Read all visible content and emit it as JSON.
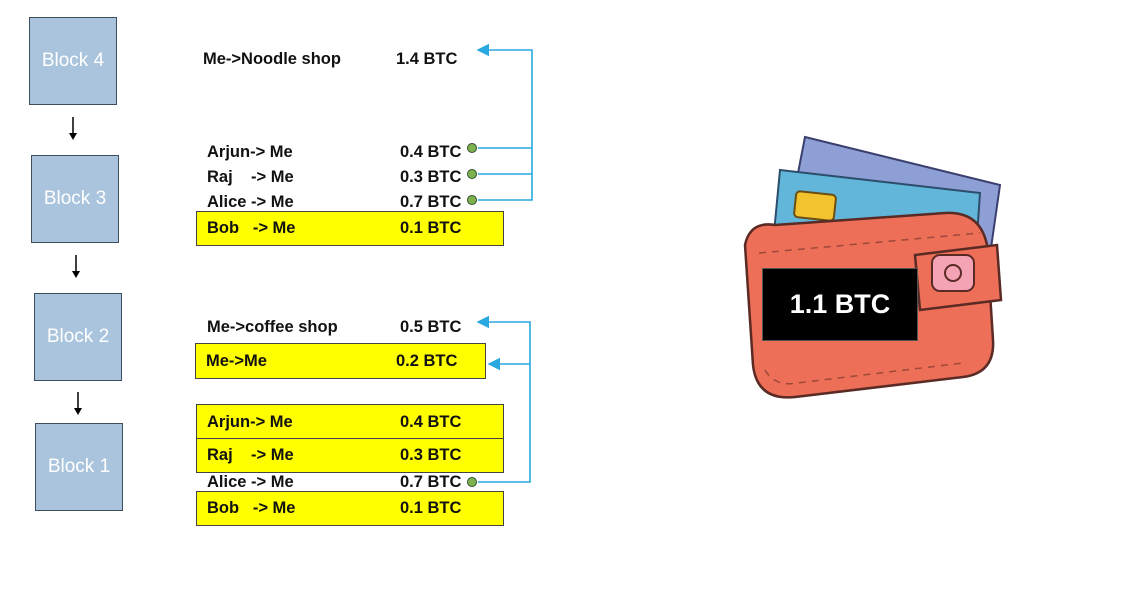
{
  "blocks": [
    {
      "label": "Block 4"
    },
    {
      "label": "Block 3"
    },
    {
      "label": "Block 2"
    },
    {
      "label": "Block 1"
    }
  ],
  "block4": {
    "tx_noodle": {
      "who": "Me->Noodle shop",
      "amount": "1.4 BTC"
    }
  },
  "block3": {
    "tx_arjun": {
      "who": "Arjun-> Me",
      "amount": "0.4 BTC"
    },
    "tx_raj": {
      "who": "Raj    -> Me",
      "amount": "0.3 BTC"
    },
    "tx_alice": {
      "who": "Alice -> Me",
      "amount": "0.7 BTC"
    },
    "tx_bob": {
      "who": "Bob   -> Me",
      "amount": "0.1 BTC"
    }
  },
  "block2": {
    "tx_coffee": {
      "who": "Me->coffee shop",
      "amount": "0.5 BTC"
    },
    "tx_change": {
      "who": "Me->Me",
      "amount": "0.2 BTC"
    }
  },
  "block1": {
    "tx_arjun": {
      "who": "Arjun-> Me",
      "amount": "0.4 BTC"
    },
    "tx_raj": {
      "who": "Raj    -> Me",
      "amount": "0.3 BTC"
    },
    "tx_alice": {
      "who": "Alice -> Me",
      "amount": "0.7 BTC"
    },
    "tx_bob": {
      "who": "Bob   -> Me",
      "amount": "0.1 BTC"
    }
  },
  "wallet": {
    "balance": "1.1 BTC"
  },
  "colors": {
    "block_fill": "#a9c4dc",
    "highlight": "#ffff00",
    "link_line": "#29a9e0",
    "dot": "#7fb24f",
    "wallet_body": "#ee6f57"
  }
}
